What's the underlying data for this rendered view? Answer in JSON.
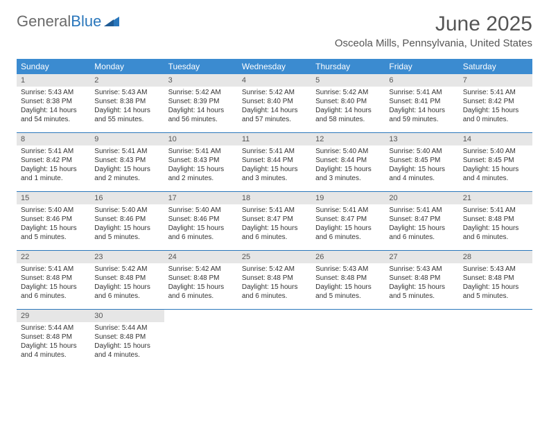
{
  "logo": {
    "text1": "General",
    "text2": "Blue"
  },
  "title": "June 2025",
  "location": "Osceola Mills, Pennsylvania, United States",
  "colors": {
    "header_bg": "#3b8bd0",
    "week_border": "#2976bb",
    "daynum_bg": "#e6e6e6",
    "logo_gray": "#6a6a6a",
    "logo_blue": "#2976bb",
    "text": "#333333"
  },
  "dow": [
    "Sunday",
    "Monday",
    "Tuesday",
    "Wednesday",
    "Thursday",
    "Friday",
    "Saturday"
  ],
  "weeks": [
    [
      {
        "n": "1",
        "sr": "Sunrise: 5:43 AM",
        "ss": "Sunset: 8:38 PM",
        "dl1": "Daylight: 14 hours",
        "dl2": "and 54 minutes."
      },
      {
        "n": "2",
        "sr": "Sunrise: 5:43 AM",
        "ss": "Sunset: 8:38 PM",
        "dl1": "Daylight: 14 hours",
        "dl2": "and 55 minutes."
      },
      {
        "n": "3",
        "sr": "Sunrise: 5:42 AM",
        "ss": "Sunset: 8:39 PM",
        "dl1": "Daylight: 14 hours",
        "dl2": "and 56 minutes."
      },
      {
        "n": "4",
        "sr": "Sunrise: 5:42 AM",
        "ss": "Sunset: 8:40 PM",
        "dl1": "Daylight: 14 hours",
        "dl2": "and 57 minutes."
      },
      {
        "n": "5",
        "sr": "Sunrise: 5:42 AM",
        "ss": "Sunset: 8:40 PM",
        "dl1": "Daylight: 14 hours",
        "dl2": "and 58 minutes."
      },
      {
        "n": "6",
        "sr": "Sunrise: 5:41 AM",
        "ss": "Sunset: 8:41 PM",
        "dl1": "Daylight: 14 hours",
        "dl2": "and 59 minutes."
      },
      {
        "n": "7",
        "sr": "Sunrise: 5:41 AM",
        "ss": "Sunset: 8:42 PM",
        "dl1": "Daylight: 15 hours",
        "dl2": "and 0 minutes."
      }
    ],
    [
      {
        "n": "8",
        "sr": "Sunrise: 5:41 AM",
        "ss": "Sunset: 8:42 PM",
        "dl1": "Daylight: 15 hours",
        "dl2": "and 1 minute."
      },
      {
        "n": "9",
        "sr": "Sunrise: 5:41 AM",
        "ss": "Sunset: 8:43 PM",
        "dl1": "Daylight: 15 hours",
        "dl2": "and 2 minutes."
      },
      {
        "n": "10",
        "sr": "Sunrise: 5:41 AM",
        "ss": "Sunset: 8:43 PM",
        "dl1": "Daylight: 15 hours",
        "dl2": "and 2 minutes."
      },
      {
        "n": "11",
        "sr": "Sunrise: 5:41 AM",
        "ss": "Sunset: 8:44 PM",
        "dl1": "Daylight: 15 hours",
        "dl2": "and 3 minutes."
      },
      {
        "n": "12",
        "sr": "Sunrise: 5:40 AM",
        "ss": "Sunset: 8:44 PM",
        "dl1": "Daylight: 15 hours",
        "dl2": "and 3 minutes."
      },
      {
        "n": "13",
        "sr": "Sunrise: 5:40 AM",
        "ss": "Sunset: 8:45 PM",
        "dl1": "Daylight: 15 hours",
        "dl2": "and 4 minutes."
      },
      {
        "n": "14",
        "sr": "Sunrise: 5:40 AM",
        "ss": "Sunset: 8:45 PM",
        "dl1": "Daylight: 15 hours",
        "dl2": "and 4 minutes."
      }
    ],
    [
      {
        "n": "15",
        "sr": "Sunrise: 5:40 AM",
        "ss": "Sunset: 8:46 PM",
        "dl1": "Daylight: 15 hours",
        "dl2": "and 5 minutes."
      },
      {
        "n": "16",
        "sr": "Sunrise: 5:40 AM",
        "ss": "Sunset: 8:46 PM",
        "dl1": "Daylight: 15 hours",
        "dl2": "and 5 minutes."
      },
      {
        "n": "17",
        "sr": "Sunrise: 5:40 AM",
        "ss": "Sunset: 8:46 PM",
        "dl1": "Daylight: 15 hours",
        "dl2": "and 6 minutes."
      },
      {
        "n": "18",
        "sr": "Sunrise: 5:41 AM",
        "ss": "Sunset: 8:47 PM",
        "dl1": "Daylight: 15 hours",
        "dl2": "and 6 minutes."
      },
      {
        "n": "19",
        "sr": "Sunrise: 5:41 AM",
        "ss": "Sunset: 8:47 PM",
        "dl1": "Daylight: 15 hours",
        "dl2": "and 6 minutes."
      },
      {
        "n": "20",
        "sr": "Sunrise: 5:41 AM",
        "ss": "Sunset: 8:47 PM",
        "dl1": "Daylight: 15 hours",
        "dl2": "and 6 minutes."
      },
      {
        "n": "21",
        "sr": "Sunrise: 5:41 AM",
        "ss": "Sunset: 8:48 PM",
        "dl1": "Daylight: 15 hours",
        "dl2": "and 6 minutes."
      }
    ],
    [
      {
        "n": "22",
        "sr": "Sunrise: 5:41 AM",
        "ss": "Sunset: 8:48 PM",
        "dl1": "Daylight: 15 hours",
        "dl2": "and 6 minutes."
      },
      {
        "n": "23",
        "sr": "Sunrise: 5:42 AM",
        "ss": "Sunset: 8:48 PM",
        "dl1": "Daylight: 15 hours",
        "dl2": "and 6 minutes."
      },
      {
        "n": "24",
        "sr": "Sunrise: 5:42 AM",
        "ss": "Sunset: 8:48 PM",
        "dl1": "Daylight: 15 hours",
        "dl2": "and 6 minutes."
      },
      {
        "n": "25",
        "sr": "Sunrise: 5:42 AM",
        "ss": "Sunset: 8:48 PM",
        "dl1": "Daylight: 15 hours",
        "dl2": "and 6 minutes."
      },
      {
        "n": "26",
        "sr": "Sunrise: 5:43 AM",
        "ss": "Sunset: 8:48 PM",
        "dl1": "Daylight: 15 hours",
        "dl2": "and 5 minutes."
      },
      {
        "n": "27",
        "sr": "Sunrise: 5:43 AM",
        "ss": "Sunset: 8:48 PM",
        "dl1": "Daylight: 15 hours",
        "dl2": "and 5 minutes."
      },
      {
        "n": "28",
        "sr": "Sunrise: 5:43 AM",
        "ss": "Sunset: 8:48 PM",
        "dl1": "Daylight: 15 hours",
        "dl2": "and 5 minutes."
      }
    ],
    [
      {
        "n": "29",
        "sr": "Sunrise: 5:44 AM",
        "ss": "Sunset: 8:48 PM",
        "dl1": "Daylight: 15 hours",
        "dl2": "and 4 minutes."
      },
      {
        "n": "30",
        "sr": "Sunrise: 5:44 AM",
        "ss": "Sunset: 8:48 PM",
        "dl1": "Daylight: 15 hours",
        "dl2": "and 4 minutes."
      },
      {
        "empty": true
      },
      {
        "empty": true
      },
      {
        "empty": true
      },
      {
        "empty": true
      },
      {
        "empty": true
      }
    ]
  ]
}
